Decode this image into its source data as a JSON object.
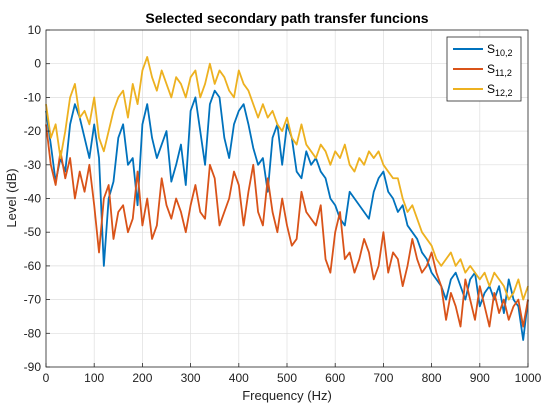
{
  "chart_data": {
    "type": "line",
    "title": "Selected secondary path transfer funcions",
    "xlabel": "Frequency (Hz)",
    "ylabel": "Level (dB)",
    "xlim": [
      0,
      1000
    ],
    "ylim": [
      -90,
      10
    ],
    "xticks": [
      "0",
      "100",
      "200",
      "300",
      "400",
      "500",
      "600",
      "700",
      "800",
      "900",
      "1000"
    ],
    "yticks": [
      "10",
      "0",
      "-10",
      "-20",
      "-30",
      "-40",
      "-50",
      "-60",
      "-70",
      "-80",
      "-90"
    ],
    "grid": true,
    "legend_position": "top-right",
    "x": [
      0,
      10,
      20,
      30,
      40,
      50,
      60,
      70,
      80,
      90,
      100,
      110,
      120,
      130,
      140,
      150,
      160,
      170,
      180,
      190,
      200,
      210,
      220,
      230,
      240,
      250,
      260,
      270,
      280,
      290,
      300,
      310,
      320,
      330,
      340,
      350,
      360,
      370,
      380,
      390,
      400,
      410,
      420,
      430,
      440,
      450,
      460,
      470,
      480,
      490,
      500,
      510,
      520,
      530,
      540,
      550,
      560,
      570,
      580,
      590,
      600,
      610,
      620,
      630,
      640,
      650,
      660,
      670,
      680,
      690,
      700,
      710,
      720,
      730,
      740,
      750,
      760,
      770,
      780,
      790,
      800,
      810,
      820,
      830,
      840,
      850,
      860,
      870,
      880,
      890,
      900,
      910,
      920,
      930,
      940,
      950,
      960,
      970,
      980,
      990,
      1000
    ],
    "series": [
      {
        "name": "S",
        "subscript": "10,2",
        "color": "#0072BD",
        "values": [
          -14,
          -24,
          -35,
          -28,
          -32,
          -18,
          -12,
          -16,
          -22,
          -28,
          -18,
          -28,
          -60,
          -40,
          -35,
          -22,
          -18,
          -30,
          -28,
          -42,
          -18,
          -12,
          -22,
          -28,
          -24,
          -20,
          -35,
          -30,
          -24,
          -36,
          -14,
          -10,
          -20,
          -30,
          -12,
          -8,
          -10,
          -22,
          -28,
          -18,
          -14,
          -12,
          -18,
          -25,
          -30,
          -28,
          -38,
          -22,
          -18,
          -30,
          -18,
          -22,
          -32,
          -34,
          -26,
          -30,
          -28,
          -32,
          -34,
          -40,
          -42,
          -46,
          -48,
          -38,
          -40,
          -42,
          -44,
          -46,
          -38,
          -34,
          -32,
          -38,
          -40,
          -44,
          -42,
          -48,
          -50,
          -52,
          -56,
          -58,
          -62,
          -64,
          -66,
          -70,
          -64,
          -62,
          -66,
          -70,
          -64,
          -62,
          -72,
          -68,
          -66,
          -70,
          -66,
          -74,
          -64,
          -70,
          -72,
          -82,
          -70
        ]
      },
      {
        "name": "S",
        "subscript": "11,2",
        "color": "#D95319",
        "values": [
          -18,
          -30,
          -36,
          -26,
          -34,
          -28,
          -40,
          -32,
          -38,
          -30,
          -42,
          -56,
          -40,
          -36,
          -52,
          -44,
          -42,
          -50,
          -46,
          -32,
          -48,
          -40,
          -52,
          -48,
          -34,
          -42,
          -46,
          -40,
          -44,
          -50,
          -42,
          -36,
          -44,
          -46,
          -30,
          -34,
          -48,
          -44,
          -40,
          -32,
          -36,
          -48,
          -38,
          -30,
          -44,
          -48,
          -34,
          -44,
          -50,
          -40,
          -48,
          -54,
          -52,
          -38,
          -44,
          -46,
          -48,
          -42,
          -58,
          -62,
          -50,
          -44,
          -58,
          -56,
          -62,
          -58,
          -52,
          -56,
          -64,
          -60,
          -50,
          -62,
          -56,
          -58,
          -66,
          -60,
          -52,
          -58,
          -62,
          -60,
          -56,
          -62,
          -66,
          -76,
          -68,
          -72,
          -78,
          -64,
          -70,
          -76,
          -66,
          -72,
          -78,
          -68,
          -74,
          -70,
          -76,
          -72,
          -70,
          -78,
          -70
        ]
      },
      {
        "name": "S",
        "subscript": "12,2",
        "color": "#EDB120",
        "values": [
          -12,
          -22,
          -18,
          -28,
          -20,
          -10,
          -6,
          -16,
          -14,
          -18,
          -10,
          -22,
          -26,
          -20,
          -14,
          -10,
          -8,
          -16,
          -6,
          -12,
          -2,
          2,
          -4,
          -8,
          -2,
          -6,
          -10,
          -4,
          -6,
          -10,
          -4,
          -2,
          -10,
          -6,
          0,
          -6,
          -2,
          -4,
          -8,
          -10,
          -2,
          -6,
          -8,
          -12,
          -16,
          -12,
          -16,
          -14,
          -18,
          -20,
          -16,
          -22,
          -24,
          -18,
          -24,
          -26,
          -28,
          -24,
          -26,
          -30,
          -26,
          -28,
          -24,
          -30,
          -32,
          -28,
          -30,
          -26,
          -28,
          -26,
          -30,
          -32,
          -34,
          -34,
          -40,
          -44,
          -42,
          -46,
          -50,
          -52,
          -54,
          -58,
          -60,
          -58,
          -56,
          -60,
          -58,
          -62,
          -60,
          -62,
          -64,
          -62,
          -66,
          -62,
          -64,
          -66,
          -70,
          -68,
          -64,
          -70,
          -66
        ]
      }
    ]
  }
}
